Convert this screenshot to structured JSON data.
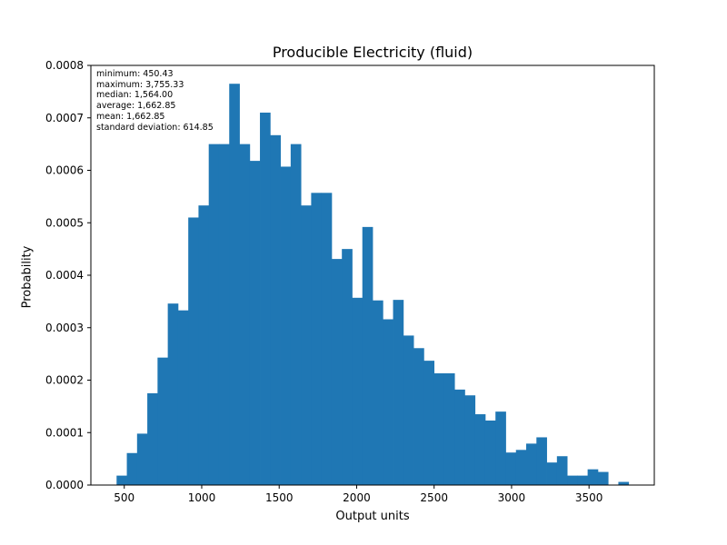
{
  "chart_data": {
    "type": "bar",
    "title": "Producible Electricity (fluid)",
    "xlabel": "Output units",
    "ylabel": "Probability",
    "xlim": [
      284.5,
      3921.3
    ],
    "ylim": [
      0,
      0.0008
    ],
    "xticks": [
      500,
      1000,
      1500,
      2000,
      2500,
      3000,
      3500
    ],
    "xtick_labels": [
      "500",
      "1000",
      "1500",
      "2000",
      "2500",
      "3000",
      "3500"
    ],
    "yticks": [
      0,
      0.0001,
      0.0002,
      0.0003,
      0.0004,
      0.0005,
      0.0006,
      0.0007,
      0.0008
    ],
    "ytick_labels": [
      "0.0000",
      "0.0001",
      "0.0002",
      "0.0003",
      "0.0004",
      "0.0005",
      "0.0006",
      "0.0007",
      "0.0008"
    ],
    "bin_start": 450.43,
    "bin_end": 3755.33,
    "bin_count": 50,
    "values": [
      1.8e-05,
      6.1e-05,
      9.8e-05,
      0.000175,
      0.000243,
      0.000346,
      0.000333,
      0.00051,
      0.000533,
      0.00065,
      0.00065,
      0.000765,
      0.00065,
      0.000618,
      0.00071,
      0.000667,
      0.000607,
      0.00065,
      0.000533,
      0.000557,
      0.000557,
      0.000431,
      0.00045,
      0.000357,
      0.000492,
      0.000352,
      0.000316,
      0.000353,
      0.000285,
      0.000261,
      0.000237,
      0.000213,
      0.000213,
      0.000182,
      0.000171,
      0.000135,
      0.000123,
      0.00014,
      6.2e-05,
      6.7e-05,
      7.9e-05,
      9.1e-05,
      4.3e-05,
      5.5e-05,
      1.8e-05,
      1.8e-05,
      3e-05,
      2.5e-05,
      0,
      6e-06
    ],
    "bar_color": "#1f77b4",
    "grid": false,
    "legend": "none",
    "annotation_lines": [
      "minimum: 450.43",
      "maximum: 3,755.33",
      "median: 1,564.00",
      "average: 1,662.85",
      "mean: 1,662.85",
      "standard deviation: 614.85"
    ]
  }
}
